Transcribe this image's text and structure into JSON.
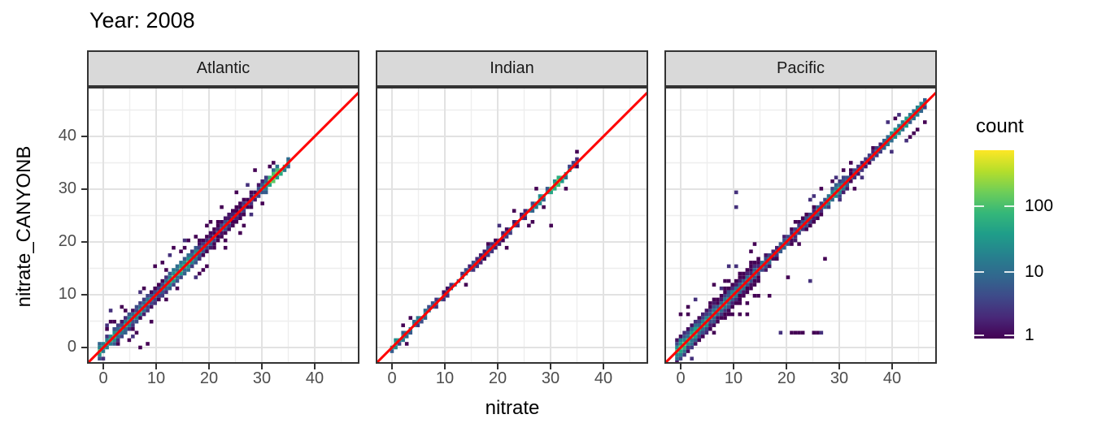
{
  "title": "Year: 2008",
  "axes": {
    "x_title": "nitrate",
    "y_title": "nitrate_CANYONB",
    "x_tick_labels": [
      "0",
      "10",
      "20",
      "30",
      "40"
    ],
    "y_tick_labels": [
      "0",
      "10",
      "20",
      "30",
      "40"
    ],
    "major_gridlines": [
      0,
      10,
      20,
      30,
      40
    ],
    "minor_gridlines": [
      5,
      15,
      25,
      35,
      45
    ],
    "range": [
      -3.1,
      48.5
    ]
  },
  "legend": {
    "title": "count",
    "tick_labels": [
      "100",
      "10",
      "1"
    ],
    "tick_values": [
      100,
      10,
      1
    ],
    "domain_max": 700,
    "scale": "log10"
  },
  "colors": {
    "identity_line": "#ff0000",
    "strip_fill": "#d9d9d9",
    "panel_border": "#333333",
    "tick_label": "#4d4d4d",
    "grid_major": "#e2e2e2",
    "grid_minor": "#eeeeee",
    "viridis": [
      "#440154",
      "#482878",
      "#3e4a89",
      "#31688e",
      "#26828e",
      "#1f9e89",
      "#35b779",
      "#6ece58",
      "#b5de2b",
      "#fde725"
    ]
  },
  "chart_data": {
    "type": "heatmap",
    "subtype": "bin2d",
    "x_variable": "nitrate",
    "y_variable": "nitrate_CANYONB",
    "bin_size": 0.7,
    "identity_line": true,
    "count_range": [
      1,
      700
    ],
    "facets": [
      {
        "label": "Atlantic",
        "diag": [
          -0.7,
          35.4
        ],
        "decay": {
          "amp": 90,
          "tau": 5,
          "floor": 9
        },
        "bumps": [
          [
            14.8,
            2.2,
            130
          ],
          [
            32.4,
            1.7,
            260
          ]
        ],
        "spread": [
          [
            -1,
            2.2
          ],
          [
            4,
            2.8
          ],
          [
            27,
            2.0
          ],
          [
            33,
            1.4
          ]
        ],
        "scatter_prob": [
          0.5,
          0.35
        ],
        "scatter_t": 28,
        "outliers": [
          [
            1.2,
            6.9
          ],
          [
            2.1,
            5.2
          ],
          [
            0.5,
            4.3
          ],
          [
            3.3,
            7.6
          ],
          [
            2.8,
            3.9
          ],
          [
            8.7,
            0.6
          ],
          [
            7.1,
            0.1
          ],
          [
            5.4,
            1.8
          ],
          [
            9.8,
            15.7
          ],
          [
            11.2,
            16.4
          ],
          [
            12.6,
            17.3
          ],
          [
            10.1,
            8.3
          ],
          [
            13.3,
            18.8
          ],
          [
            15.4,
            20.3
          ],
          [
            17.2,
            13.0
          ],
          [
            19.5,
            15.2
          ],
          [
            23.3,
            18.9
          ],
          [
            26.0,
            22.0
          ],
          [
            28.4,
            33.3
          ],
          [
            25.2,
            29.5
          ],
          [
            7.0,
            10.2
          ],
          [
            12.0,
            9.0
          ]
        ]
      },
      {
        "label": "Indian",
        "diag": [
          -0.3,
          35.4
        ],
        "decay": {
          "amp": 55,
          "tau": 4,
          "floor": 8
        },
        "bumps": [
          [
            31.3,
            1.5,
            200
          ],
          [
            27.5,
            1.2,
            40
          ]
        ],
        "spread": [
          [
            -1,
            1.4
          ]
        ],
        "scatter_prob": [
          0.12,
          0.1
        ],
        "scatter_t": 20,
        "outliers": [
          [
            1.9,
            4.5
          ],
          [
            2.6,
            0.7
          ],
          [
            13.9,
            12.0
          ],
          [
            21.4,
            19.0
          ],
          [
            23.1,
            26.2
          ],
          [
            26.7,
            23.8
          ],
          [
            28.9,
            26.3
          ],
          [
            30.0,
            22.9
          ],
          [
            33.0,
            29.9
          ]
        ]
      },
      {
        "label": "Pacific",
        "diag": [
          -0.7,
          46.2
        ],
        "decay": {
          "amp": 110,
          "tau": 6,
          "floor": 11
        },
        "bumps": [
          [
            29,
            1.5,
            60
          ],
          [
            41.5,
            2.5,
            70
          ],
          [
            45,
            1.5,
            40
          ]
        ],
        "spread": [
          [
            -1,
            4.0
          ],
          [
            15,
            2.2
          ],
          [
            34,
            1.8
          ]
        ],
        "scatter_prob": [
          0.55,
          0.25
        ],
        "scatter_t": 16,
        "outliers": [
          [
            18.6,
            3.1
          ],
          [
            20.9,
            3.1
          ],
          [
            21.6,
            3.1
          ],
          [
            22.3,
            3.1
          ],
          [
            23.3,
            3.1
          ],
          [
            25.1,
            3.1
          ],
          [
            25.8,
            3.1
          ],
          [
            26.5,
            3.1
          ],
          [
            10.4,
            29.6
          ],
          [
            10.4,
            26.6
          ],
          [
            27.2,
            17.1
          ],
          [
            20.5,
            13.6
          ],
          [
            24.4,
            12.3
          ],
          [
            1.2,
            7.4
          ],
          [
            3.1,
            8.8
          ],
          [
            6.2,
            12.1
          ],
          [
            0.3,
            6.0
          ],
          [
            16.8,
            9.7
          ],
          [
            12.5,
            6.3
          ],
          [
            14.0,
            19.8
          ],
          [
            36.1,
            38.0
          ],
          [
            9.0,
            15.5
          ]
        ]
      }
    ]
  }
}
